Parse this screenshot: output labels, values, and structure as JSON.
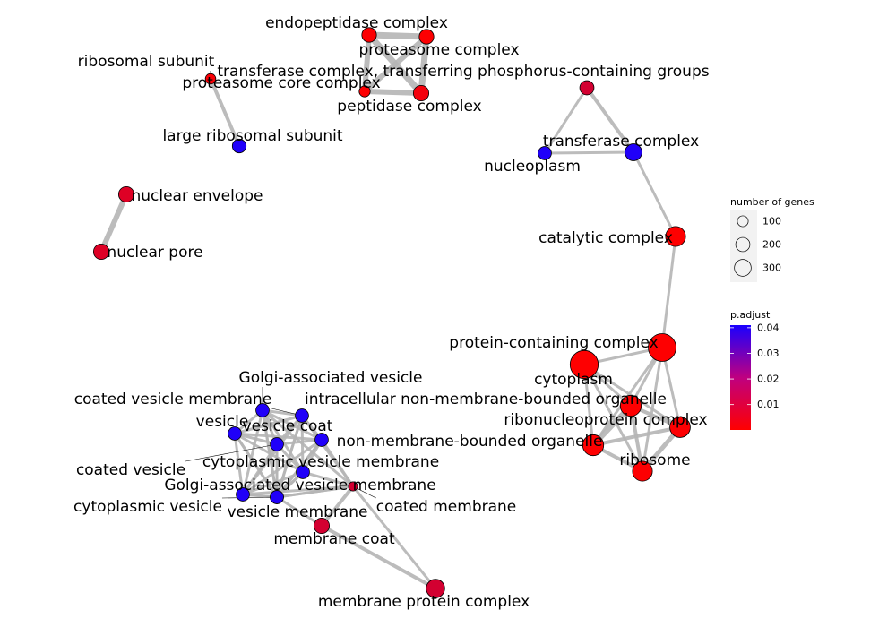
{
  "colors": {
    "background": "#ffffff",
    "edge": "#b5b5b5",
    "leader": "#000000",
    "node_outline": "#000000",
    "pvalue_low": "#ff0000",
    "pvalue_high": "#0000ff"
  },
  "nodes": [
    {
      "id": "endopeptidase",
      "label": "endopeptidase complex",
      "p": 0.0005,
      "genes": 60
    },
    {
      "id": "proteasome",
      "label": "proteasome complex",
      "p": 0.0005,
      "genes": 60
    },
    {
      "id": "transferase_phospho",
      "label": "transferase complex, transferring phosphorus-containing groups",
      "p": 0.008,
      "genes": 55
    },
    {
      "id": "proteasome_core",
      "label": "proteasome core complex",
      "p": 0.0005,
      "genes": 25
    },
    {
      "id": "peptidase",
      "label": "peptidase complex",
      "p": 0.002,
      "genes": 70
    },
    {
      "id": "ribosomal_subunit",
      "label": "ribosomal subunit",
      "p": 0.001,
      "genes": 20
    },
    {
      "id": "large_ribosomal",
      "label": "large ribosomal subunit",
      "p": 0.04,
      "genes": 50
    },
    {
      "id": "transferase",
      "label": "transferase complex",
      "p": 0.04,
      "genes": 90
    },
    {
      "id": "nucleoplasm",
      "label": "nucleoplasm",
      "p": 0.04,
      "genes": 45
    },
    {
      "id": "nuclear_envelope",
      "label": "nuclear envelope",
      "p": 0.006,
      "genes": 70
    },
    {
      "id": "nuclear_pore",
      "label": "nuclear pore",
      "p": 0.006,
      "genes": 70
    },
    {
      "id": "catalytic",
      "label": "catalytic complex",
      "p": 0.0002,
      "genes": 140
    },
    {
      "id": "protein_containing",
      "label": "protein-containing complex",
      "p": 0.0002,
      "genes": 320
    },
    {
      "id": "cytoplasm",
      "label": "cytoplasm",
      "p": 0.0002,
      "genes": 330
    },
    {
      "id": "intracellular_nmbo",
      "label": "intracellular non-membrane-bounded organelle",
      "p": 0.0002,
      "genes": 160
    },
    {
      "id": "ribonucleoprotein",
      "label": "ribonucleoprotein complex",
      "p": 0.0005,
      "genes": 150
    },
    {
      "id": "nmbo",
      "label": "non-membrane-bounded organelle",
      "p": 0.0002,
      "genes": 160
    },
    {
      "id": "ribosome",
      "label": "ribosome",
      "p": 0.0005,
      "genes": 140
    },
    {
      "id": "golgi_vesicle",
      "label": "Golgi-associated vesicle",
      "p": 0.04,
      "genes": 45
    },
    {
      "id": "coated_vesicle_membrane",
      "label": "coated vesicle membrane",
      "p": 0.04,
      "genes": 45
    },
    {
      "id": "vesicle",
      "label": "vesicle",
      "p": 0.04,
      "genes": 45
    },
    {
      "id": "vesicle_coat",
      "label": "vesicle coat",
      "p": 0.04,
      "genes": 45
    },
    {
      "id": "coated_vesicle",
      "label": "coated vesicle",
      "p": 0.04,
      "genes": 45
    },
    {
      "id": "cytoplasmic_vesicle_membrane",
      "label": "cytoplasmic vesicle membrane",
      "p": 0.04,
      "genes": 45
    },
    {
      "id": "golgi_vesicle_membrane",
      "label": "Golgi-associated vesicle membrane",
      "p": 0.04,
      "genes": 45
    },
    {
      "id": "coated_membrane",
      "label": "coated membrane",
      "p": 0.008,
      "genes": 12
    },
    {
      "id": "cytoplasmic_vesicle",
      "label": "cytoplasmic vesicle",
      "p": 0.04,
      "genes": 45
    },
    {
      "id": "vesicle_membrane",
      "label": "vesicle membrane",
      "p": 0.04,
      "genes": 45
    },
    {
      "id": "membrane_coat",
      "label": "membrane coat",
      "p": 0.008,
      "genes": 70
    },
    {
      "id": "membrane_protein",
      "label": "membrane protein complex",
      "p": 0.008,
      "genes": 115
    }
  ],
  "edges": [
    [
      "endopeptidase",
      "proteasome",
      7
    ],
    [
      "endopeptidase",
      "proteasome_core",
      6
    ],
    [
      "endopeptidase",
      "peptidase",
      7
    ],
    [
      "proteasome",
      "proteasome_core",
      6
    ],
    [
      "proteasome",
      "peptidase",
      7
    ],
    [
      "proteasome_core",
      "peptidase",
      6
    ],
    [
      "ribosomal_subunit",
      "large_ribosomal",
      4
    ],
    [
      "nuclear_envelope",
      "nuclear_pore",
      6
    ],
    [
      "transferase_phospho",
      "transferase",
      4
    ],
    [
      "transferase_phospho",
      "nucleoplasm",
      3
    ],
    [
      "transferase",
      "nucleoplasm",
      3
    ],
    [
      "transferase",
      "catalytic",
      3
    ],
    [
      "catalytic",
      "protein_containing",
      3
    ],
    [
      "protein_containing",
      "cytoplasm",
      3
    ],
    [
      "protein_containing",
      "intracellular_nmbo",
      3
    ],
    [
      "protein_containing",
      "ribonucleoprotein",
      3
    ],
    [
      "protein_containing",
      "nmbo",
      3
    ],
    [
      "protein_containing",
      "ribosome",
      3
    ],
    [
      "cytoplasm",
      "intracellular_nmbo",
      3
    ],
    [
      "cytoplasm",
      "nmbo",
      3
    ],
    [
      "cytoplasm",
      "ribonucleoprotein",
      3
    ],
    [
      "cytoplasm",
      "ribosome",
      3
    ],
    [
      "intracellular_nmbo",
      "ribonucleoprotein",
      4
    ],
    [
      "intracellular_nmbo",
      "nmbo",
      6
    ],
    [
      "intracellular_nmbo",
      "ribosome",
      4
    ],
    [
      "nmbo",
      "ribonucleoprotein",
      4
    ],
    [
      "nmbo",
      "ribosome",
      4
    ],
    [
      "ribonucleoprotein",
      "ribosome",
      5
    ],
    [
      "golgi_vesicle",
      "coated_vesicle_membrane",
      3
    ],
    [
      "golgi_vesicle",
      "vesicle",
      3
    ],
    [
      "golgi_vesicle",
      "vesicle_coat",
      3
    ],
    [
      "golgi_vesicle",
      "coated_vesicle",
      3
    ],
    [
      "golgi_vesicle",
      "cytoplasmic_vesicle_membrane",
      3
    ],
    [
      "golgi_vesicle",
      "golgi_vesicle_membrane",
      3
    ],
    [
      "golgi_vesicle",
      "coated_membrane",
      3
    ],
    [
      "golgi_vesicle",
      "cytoplasmic_vesicle",
      3
    ],
    [
      "golgi_vesicle",
      "vesicle_membrane",
      3
    ],
    [
      "coated_vesicle_membrane",
      "vesicle",
      3
    ],
    [
      "coated_vesicle_membrane",
      "vesicle_coat",
      3
    ],
    [
      "coated_vesicle_membrane",
      "coated_vesicle",
      3
    ],
    [
      "coated_vesicle_membrane",
      "cytoplasmic_vesicle_membrane",
      3
    ],
    [
      "coated_vesicle_membrane",
      "golgi_vesicle_membrane",
      3
    ],
    [
      "coated_vesicle_membrane",
      "coated_membrane",
      3
    ],
    [
      "coated_vesicle_membrane",
      "cytoplasmic_vesicle",
      3
    ],
    [
      "coated_vesicle_membrane",
      "vesicle_membrane",
      3
    ],
    [
      "vesicle",
      "vesicle_coat",
      3
    ],
    [
      "vesicle",
      "coated_vesicle",
      3
    ],
    [
      "vesicle",
      "cytoplasmic_vesicle_membrane",
      3
    ],
    [
      "vesicle",
      "golgi_vesicle_membrane",
      3
    ],
    [
      "vesicle",
      "cytoplasmic_vesicle",
      3
    ],
    [
      "vesicle",
      "vesicle_membrane",
      3
    ],
    [
      "vesicle_coat",
      "coated_vesicle",
      3
    ],
    [
      "vesicle_coat",
      "cytoplasmic_vesicle_membrane",
      3
    ],
    [
      "vesicle_coat",
      "golgi_vesicle_membrane",
      3
    ],
    [
      "vesicle_coat",
      "coated_membrane",
      3
    ],
    [
      "vesicle_coat",
      "cytoplasmic_vesicle",
      3
    ],
    [
      "vesicle_coat",
      "vesicle_membrane",
      3
    ],
    [
      "coated_vesicle",
      "cytoplasmic_vesicle_membrane",
      3
    ],
    [
      "coated_vesicle",
      "golgi_vesicle_membrane",
      3
    ],
    [
      "coated_vesicle",
      "cytoplasmic_vesicle",
      3
    ],
    [
      "coated_vesicle",
      "vesicle_membrane",
      3
    ],
    [
      "cytoplasmic_vesicle_membrane",
      "golgi_vesicle_membrane",
      3
    ],
    [
      "cytoplasmic_vesicle_membrane",
      "coated_membrane",
      3
    ],
    [
      "cytoplasmic_vesicle_membrane",
      "cytoplasmic_vesicle",
      3
    ],
    [
      "cytoplasmic_vesicle_membrane",
      "vesicle_membrane",
      3
    ],
    [
      "golgi_vesicle_membrane",
      "coated_membrane",
      3
    ],
    [
      "golgi_vesicle_membrane",
      "cytoplasmic_vesicle",
      3
    ],
    [
      "golgi_vesicle_membrane",
      "vesicle_membrane",
      3
    ],
    [
      "coated_membrane",
      "cytoplasmic_vesicle",
      3
    ],
    [
      "coated_membrane",
      "vesicle_membrane",
      3
    ],
    [
      "coated_membrane",
      "membrane_coat",
      4
    ],
    [
      "coated_membrane",
      "membrane_protein",
      3
    ],
    [
      "cytoplasmic_vesicle",
      "vesicle_membrane",
      3
    ],
    [
      "vesicle_membrane",
      "membrane_coat",
      3
    ],
    [
      "membrane_coat",
      "membrane_protein",
      4
    ]
  ],
  "legend": {
    "size_title": "number of genes",
    "size_items": [
      {
        "label": "100",
        "genes": 100
      },
      {
        "label": "200",
        "genes": 200
      },
      {
        "label": "300",
        "genes": 300
      }
    ],
    "color_title": "p.adjust",
    "color_ticks": [
      "0.04",
      "0.03",
      "0.02",
      "0.01"
    ],
    "color_tick_values": [
      0.04,
      0.03,
      0.02,
      0.01
    ],
    "color_range": [
      0.0001,
      0.041
    ]
  }
}
